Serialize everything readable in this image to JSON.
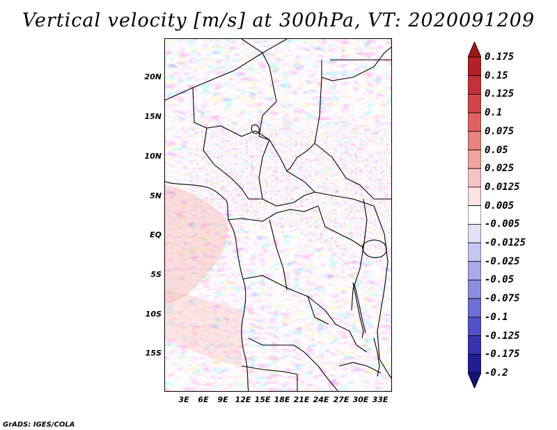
{
  "title": "Vertical velocity [m/s] at 300hPa, VT: 2020091209",
  "credit": "GrADS: IGES/COLA",
  "lat_labels": [
    "20N",
    "15N",
    "10N",
    "5N",
    "EQ",
    "5S",
    "10S",
    "15S"
  ],
  "lon_labels": [
    "3E",
    "6E",
    "9E",
    "12E",
    "15E",
    "18E",
    "21E",
    "24E",
    "27E",
    "30E",
    "33E"
  ],
  "colorbar": {
    "labels": [
      "0.175",
      "0.15",
      "0.125",
      "0.1",
      "0.075",
      "0.05",
      "0.025",
      "0.0125",
      "0.005",
      "-0.005",
      "-0.0125",
      "-0.025",
      "-0.05",
      "-0.075",
      "-0.1",
      "-0.125",
      "-0.175",
      "-0.2"
    ],
    "colors": [
      "#a3161c",
      "#b42026",
      "#c63036",
      "#d64448",
      "#e2615f",
      "#ea8280",
      "#f2a3a0",
      "#f8c4c2",
      "#fbe3e1",
      "#ffffff",
      "#e0e0f6",
      "#c6c6f0",
      "#a9a9ea",
      "#8c8ce2",
      "#6f6fd8",
      "#5050c8",
      "#3434b2",
      "#1d1d96",
      "#12127a"
    ]
  },
  "map": {
    "field": "vertical velocity",
    "level": "300hPa",
    "valid_time": "2020091209",
    "lon_range": [
      0,
      34.5
    ],
    "lat_range": [
      -20,
      24.5
    ]
  }
}
